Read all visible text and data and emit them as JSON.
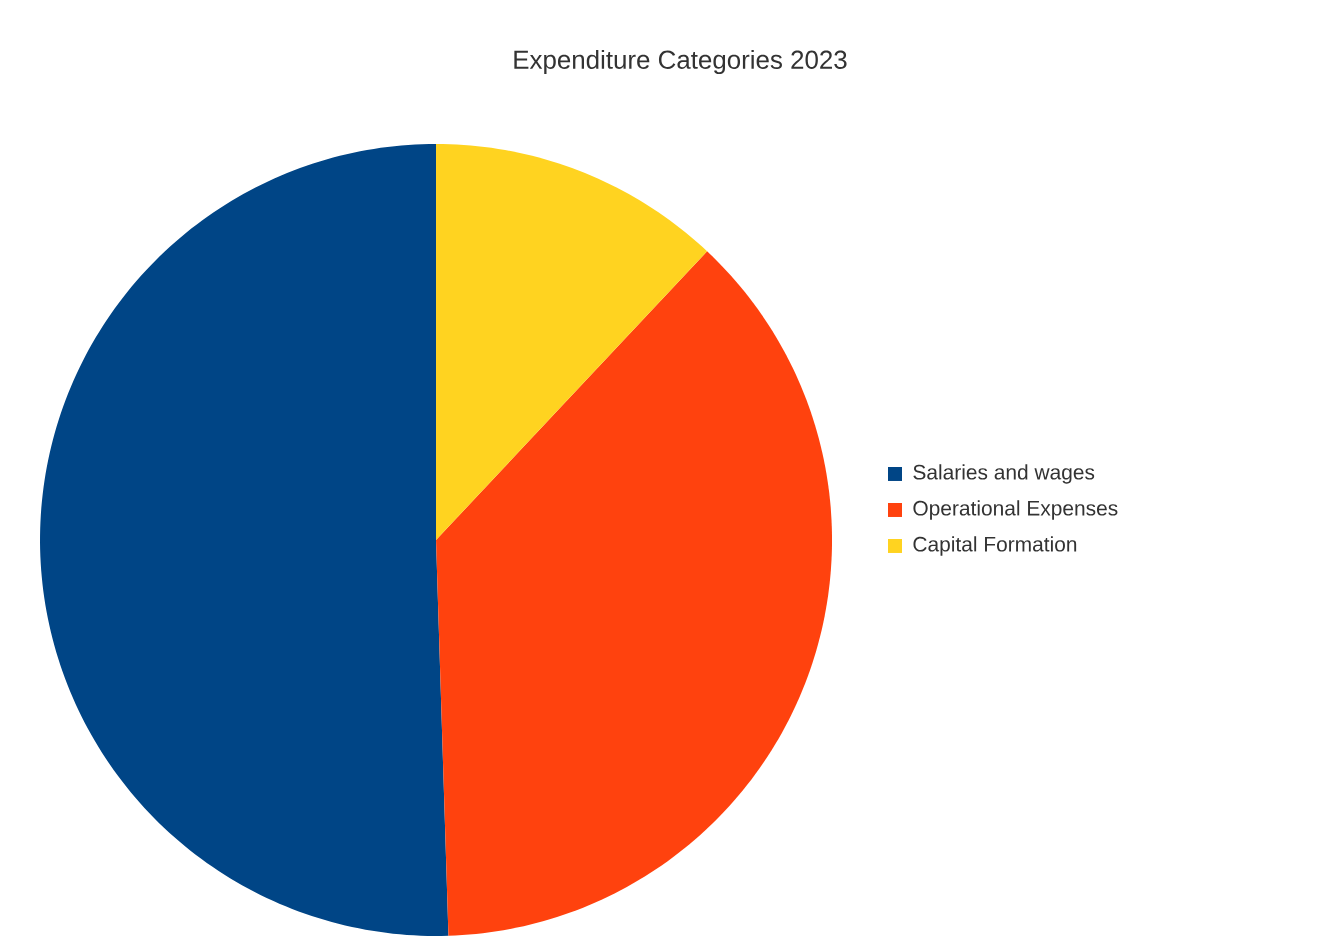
{
  "chart_data": {
    "type": "pie",
    "title": "Expenditure Categories 2023",
    "categories": [
      "Salaries and wages",
      "Operational Expenses",
      "Capital Formation"
    ],
    "values": [
      50.5,
      37.5,
      12
    ],
    "colors": [
      "#004586",
      "#ff420e",
      "#ffd320"
    ],
    "legend": "right"
  }
}
